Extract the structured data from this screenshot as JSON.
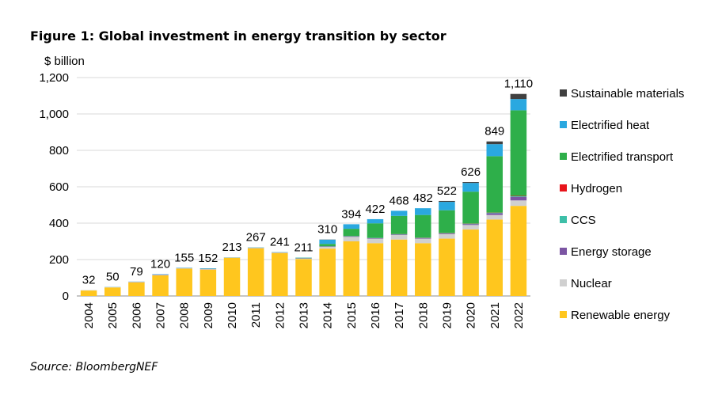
{
  "figure": {
    "title": "Figure 1: Global investment in energy transition by sector",
    "source": "Source: BloombergNEF"
  },
  "chart_data": {
    "type": "bar",
    "stacked": true,
    "title": "Figure 1: Global investment in energy transition by sector",
    "xlabel": "",
    "ylabel": "$ billion",
    "ylim": [
      0,
      1200
    ],
    "yticks": [
      0,
      200,
      400,
      600,
      800,
      1000,
      1200
    ],
    "ytick_labels": [
      "0",
      "200",
      "400",
      "600",
      "800",
      "1,000",
      "1,200"
    ],
    "grid": true,
    "legend_position": "right",
    "categories": [
      "2004",
      "2005",
      "2006",
      "2007",
      "2008",
      "2009",
      "2010",
      "2011",
      "2012",
      "2013",
      "2014",
      "2015",
      "2016",
      "2017",
      "2018",
      "2019",
      "2020",
      "2021",
      "2022"
    ],
    "totals": [
      32,
      50,
      79,
      120,
      155,
      152,
      213,
      267,
      241,
      211,
      310,
      394,
      422,
      468,
      482,
      522,
      626,
      849,
      1110
    ],
    "total_labels": [
      "32",
      "50",
      "79",
      "120",
      "155",
      "152",
      "213",
      "267",
      "241",
      "211",
      "310",
      "394",
      "422",
      "468",
      "482",
      "522",
      "626",
      "849",
      "1,110"
    ],
    "series": [
      {
        "name": "Renewable energy",
        "color": "#FFC61E",
        "values": [
          30,
          47,
          75,
          113,
          150,
          145,
          210,
          262,
          236,
          203,
          260,
          300,
          290,
          310,
          290,
          315,
          365,
          420,
          495
        ]
      },
      {
        "name": "Nuclear",
        "color": "#D0D0D0",
        "values": [
          2,
          2,
          2,
          3,
          2,
          2,
          2,
          2,
          2,
          2,
          10,
          25,
          25,
          25,
          25,
          25,
          25,
          25,
          30
        ]
      },
      {
        "name": "Energy storage",
        "color": "#7B55A3",
        "values": [
          0,
          0,
          1,
          2,
          1,
          2,
          0,
          1,
          1,
          2,
          2,
          3,
          3,
          3,
          3,
          4,
          5,
          10,
          20
        ]
      },
      {
        "name": "CCS",
        "color": "#3DBFA8",
        "values": [
          0,
          0,
          0,
          0,
          0,
          1,
          0,
          0,
          0,
          1,
          1,
          1,
          1,
          1,
          1,
          1,
          2,
          2,
          3
        ]
      },
      {
        "name": "Hydrogen",
        "color": "#E8141B",
        "values": [
          0,
          0,
          0,
          0,
          0,
          0,
          0,
          0,
          0,
          0,
          0,
          0,
          0,
          1,
          1,
          1,
          1,
          1,
          2
        ]
      },
      {
        "name": "Electrified transport",
        "color": "#2EAF4A",
        "values": [
          0,
          0,
          0,
          0,
          0,
          0,
          0,
          1,
          1,
          2,
          13,
          40,
          80,
          100,
          125,
          125,
          175,
          310,
          470
        ]
      },
      {
        "name": "Electrified heat",
        "color": "#2AA8E0",
        "values": [
          0,
          1,
          1,
          2,
          2,
          2,
          1,
          1,
          1,
          1,
          23,
          25,
          23,
          28,
          37,
          46,
          48,
          66,
          62
        ]
      },
      {
        "name": "Sustainable materials",
        "color": "#404040",
        "values": [
          0,
          0,
          0,
          0,
          0,
          0,
          0,
          0,
          0,
          0,
          1,
          0,
          0,
          0,
          0,
          5,
          5,
          15,
          28
        ]
      }
    ]
  }
}
